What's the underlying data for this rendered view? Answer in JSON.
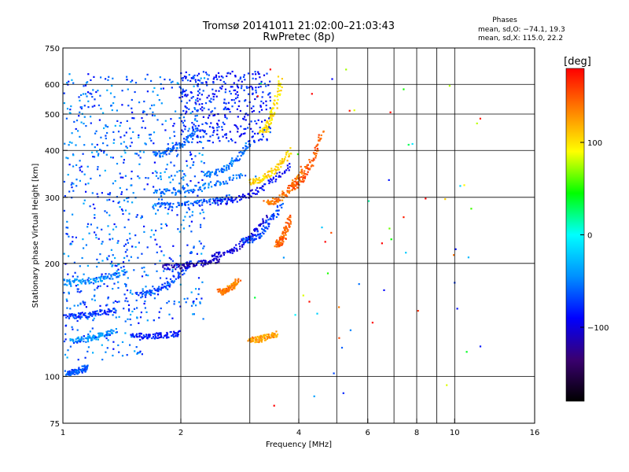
{
  "chart_data": {
    "type": "scatter",
    "title": "Tromsø 20141011 21:02:00–21:03:43",
    "subtitle": "RwPretec (8p)",
    "xlabel": "Frequency [MHz]",
    "ylabel": "Stationary phase Virtual Height [km]",
    "xscale": "log",
    "yscale": "log",
    "xlim": [
      1,
      16
    ],
    "ylim": [
      75,
      750
    ],
    "xticks": [
      1,
      2,
      4,
      6,
      8,
      10,
      16
    ],
    "xtick_labels": [
      "1",
      "2",
      "4",
      "6",
      "8",
      "10",
      "16"
    ],
    "xminor_ticks": [
      3,
      5,
      7,
      9
    ],
    "yticks": [
      75,
      100,
      200,
      300,
      400,
      500,
      600,
      750
    ],
    "ytick_labels": [
      "75",
      "100",
      "200",
      "300",
      "400",
      "500",
      "600",
      "750"
    ],
    "grid": true,
    "colorbar": {
      "title": "[deg]",
      "range": [
        -180,
        180
      ],
      "ticks": [
        100,
        0,
        -100
      ],
      "tick_labels": [
        "100",
        "0",
        "−100"
      ],
      "colors": [
        "#000000",
        "#3a0070",
        "#0000ff",
        "#0090ff",
        "#00ffff",
        "#00ff00",
        "#ffff00",
        "#ff8000",
        "#ff0000"
      ]
    },
    "stats": {
      "title": "Phases",
      "o_mode": "mean, sd,O: −74.1, 19.3",
      "x_mode": "mean, sd,X: 115.0, 22.2"
    },
    "traces": [
      {
        "x_range": [
          1.02,
          1.15
        ],
        "y_range": [
          102,
          106
        ],
        "phase": -65
      },
      {
        "x_range": [
          1.0,
          1.35
        ],
        "y_range": [
          145,
          150
        ],
        "phase": -75
      },
      {
        "x_range": [
          1.0,
          1.45
        ],
        "y_range": [
          178,
          190
        ],
        "phase": -45
      },
      {
        "x_range": [
          1.05,
          1.35
        ],
        "y_range": [
          125,
          132
        ],
        "phase": -40
      },
      {
        "x_range": [
          1.5,
          2.0
        ],
        "y_range": [
          128,
          130
        ],
        "phase": -85
      },
      {
        "x_range": [
          1.55,
          2.1
        ],
        "y_range": [
          165,
          200
        ],
        "phase": -70
      },
      {
        "x_range": [
          1.8,
          2.5
        ],
        "y_range": [
          196,
          205
        ],
        "phase": -110
      },
      {
        "x_range": [
          2.4,
          3.3
        ],
        "y_range": [
          210,
          265
        ],
        "phase": -100
      },
      {
        "x_range": [
          2.9,
          3.6
        ],
        "y_range": [
          230,
          290
        ],
        "phase": -70
      },
      {
        "x_range": [
          1.7,
          2.7
        ],
        "y_range": [
          285,
          300
        ],
        "phase": -60
      },
      {
        "x_range": [
          2.4,
          3.8
        ],
        "y_range": [
          290,
          365
        ],
        "phase": -90
      },
      {
        "x_range": [
          1.7,
          2.9
        ],
        "y_range": [
          310,
          345
        ],
        "phase": -55
      },
      {
        "x_range": [
          2.3,
          3.0
        ],
        "y_range": [
          345,
          420
        ],
        "phase": -55
      },
      {
        "x_range": [
          1.7,
          2.2
        ],
        "y_range": [
          390,
          460
        ],
        "phase": -60
      },
      {
        "x_range": [
          3.3,
          4.1
        ],
        "y_range": [
          290,
          360
        ],
        "phase": 140
      },
      {
        "x_range": [
          3.8,
          4.6
        ],
        "y_range": [
          320,
          450
        ],
        "phase": 150
      },
      {
        "x_range": [
          3.0,
          3.8
        ],
        "y_range": [
          330,
          400
        ],
        "phase": 105
      },
      {
        "x_range": [
          3.5,
          3.8
        ],
        "y_range": [
          225,
          265
        ],
        "phase": 145
      },
      {
        "x_range": [
          2.5,
          2.8
        ],
        "y_range": [
          168,
          180
        ],
        "phase": 135
      },
      {
        "x_range": [
          3.2,
          3.6
        ],
        "y_range": [
          450,
          620
        ],
        "phase": 100
      },
      {
        "x_range": [
          3.0,
          3.5
        ],
        "y_range": [
          125,
          130
        ],
        "phase": 125
      }
    ]
  }
}
